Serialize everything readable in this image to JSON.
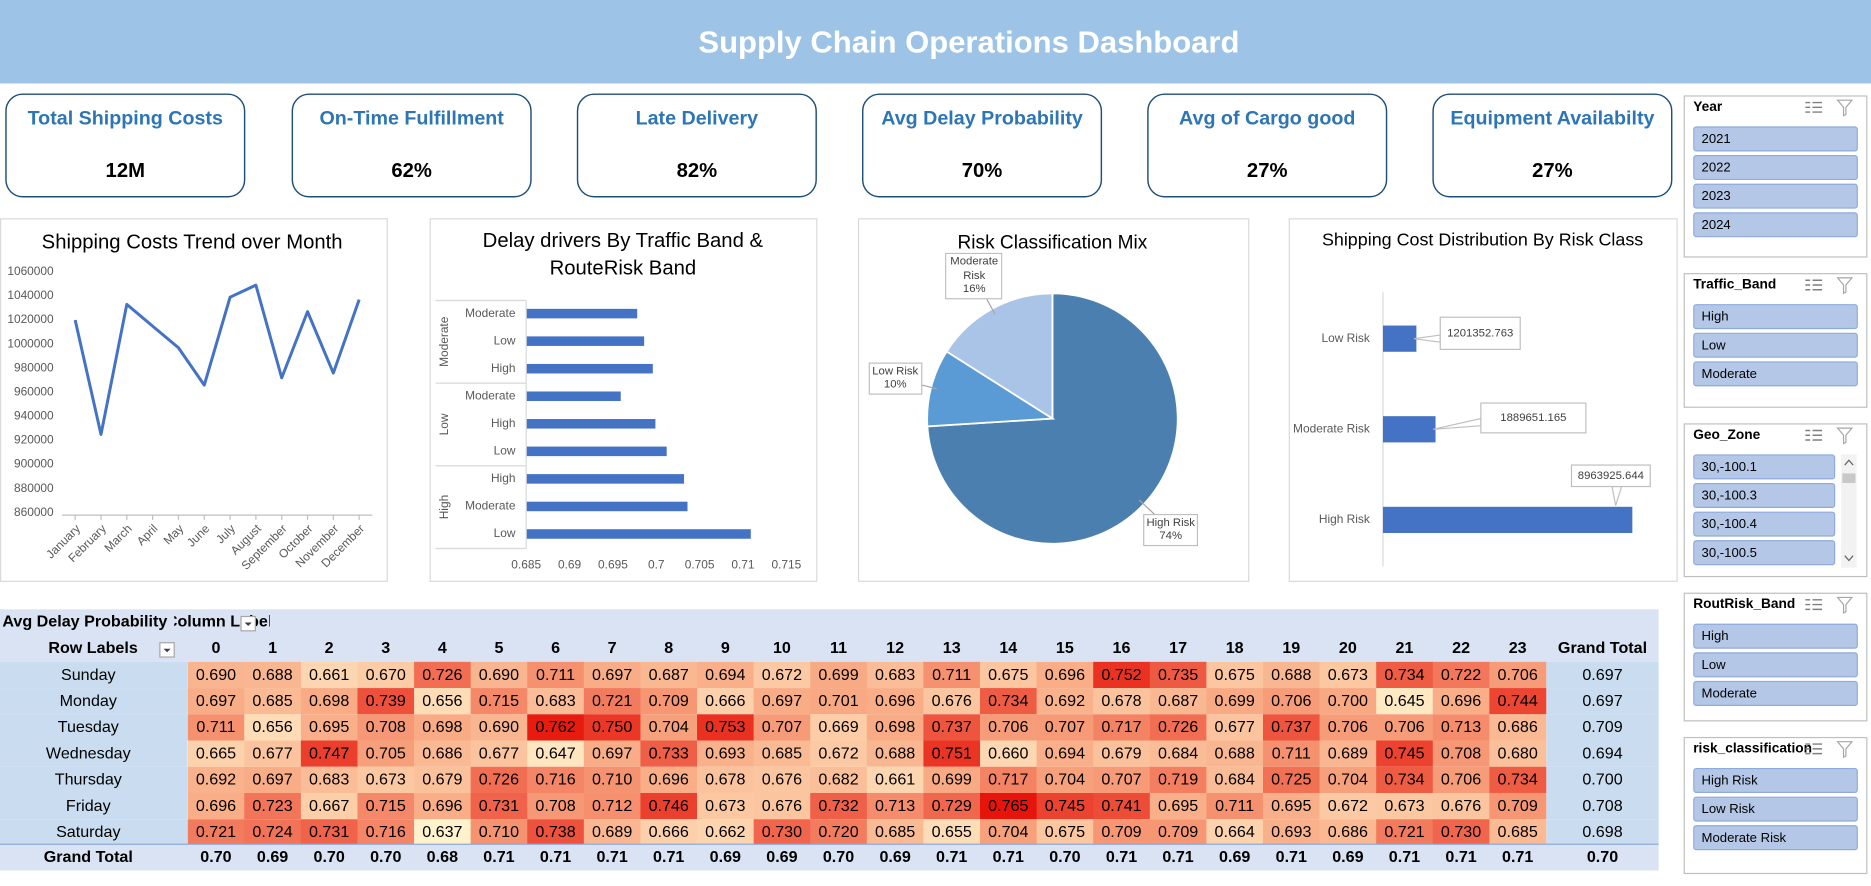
{
  "header": {
    "title": "Supply Chain Operations Dashboard"
  },
  "kpis": [
    {
      "label": "Total Shipping Costs",
      "value": "12M"
    },
    {
      "label": "On-Time Fulfillment",
      "value": "62%"
    },
    {
      "label": "Late Delivery",
      "value": "82%"
    },
    {
      "label": "Avg Delay Probability",
      "value": "70%"
    },
    {
      "label": "Avg of Cargo good",
      "value": "27%"
    },
    {
      "label": "Equipment Availabilty",
      "value": "27%"
    }
  ],
  "chart_data": [
    {
      "type": "line",
      "title": "Shipping Costs Trend over Month",
      "categories": [
        "January",
        "February",
        "March",
        "April",
        "May",
        "June",
        "July",
        "August",
        "September",
        "October",
        "November",
        "December"
      ],
      "values": [
        1020000,
        925000,
        1033000,
        1015000,
        997000,
        966000,
        1039000,
        1049000,
        972000,
        1027000,
        976000,
        1037000
      ],
      "color": "#4472c4",
      "ylim": [
        860000,
        1060000
      ],
      "yticks": [
        860000,
        880000,
        900000,
        920000,
        940000,
        960000,
        980000,
        1000000,
        1020000,
        1040000,
        1060000
      ]
    },
    {
      "type": "bar",
      "title": "Delay drivers By Traffic Band & RouteRisk Band",
      "color": "#4472c4",
      "groups": [
        {
          "name": "Moderate",
          "categories": [
            "Moderate",
            "Low",
            "High"
          ],
          "values": [
            0.6978,
            0.6986,
            0.6996
          ]
        },
        {
          "name": "Low",
          "categories": [
            "Moderate",
            "High",
            "Low"
          ],
          "values": [
            0.6959,
            0.6999,
            0.7012
          ]
        },
        {
          "name": "High",
          "categories": [
            "High",
            "Moderate",
            "Low"
          ],
          "values": [
            0.7032,
            0.7036,
            0.7109
          ]
        }
      ],
      "xlim": [
        0.685,
        0.715
      ],
      "xticks": [
        0.685,
        0.69,
        0.695,
        0.7,
        0.705,
        0.71,
        0.715
      ]
    },
    {
      "type": "pie",
      "title": "Risk Classification Mix",
      "categories": [
        "High Risk",
        "Low Risk",
        "Moderate Risk"
      ],
      "values": [
        74,
        10,
        16
      ],
      "value_labels": [
        "74%",
        "10%",
        "16%"
      ],
      "colors": [
        "#4a7fb0",
        "#5b9bd5",
        "#a9c4e6"
      ]
    },
    {
      "type": "bar",
      "title": "Shipping Cost Distribution By Risk Class",
      "color": "#4472c4",
      "categories": [
        "Low Risk",
        "Moderate Risk",
        "High Risk"
      ],
      "values": [
        1201352.763,
        1889651.165,
        8963925.644
      ]
    }
  ],
  "pivot": {
    "title": "Avg Delay Probability",
    "column_labels": "Column Labels",
    "row_labels": "Row Labels",
    "columns": [
      "0",
      "1",
      "2",
      "3",
      "4",
      "5",
      "6",
      "7",
      "8",
      "9",
      "10",
      "11",
      "12",
      "13",
      "14",
      "15",
      "16",
      "17",
      "18",
      "19",
      "20",
      "21",
      "22",
      "23"
    ],
    "grand_total_header": "Grand Total",
    "rows": [
      {
        "label": "Sunday",
        "cells": [
          "0.690",
          "0.688",
          "0.661",
          "0.670",
          "0.726",
          "0.690",
          "0.711",
          "0.697",
          "0.687",
          "0.694",
          "0.672",
          "0.699",
          "0.683",
          "0.711",
          "0.675",
          "0.696",
          "0.752",
          "0.735",
          "0.675",
          "0.688",
          "0.673",
          "0.734",
          "0.722",
          "0.706"
        ],
        "total": "0.697"
      },
      {
        "label": "Monday",
        "cells": [
          "0.697",
          "0.685",
          "0.698",
          "0.739",
          "0.656",
          "0.715",
          "0.683",
          "0.721",
          "0.709",
          "0.666",
          "0.697",
          "0.701",
          "0.696",
          "0.676",
          "0.734",
          "0.692",
          "0.678",
          "0.687",
          "0.699",
          "0.706",
          "0.700",
          "0.645",
          "0.696",
          "0.744"
        ],
        "total": "0.697"
      },
      {
        "label": "Tuesday",
        "cells": [
          "0.711",
          "0.656",
          "0.695",
          "0.708",
          "0.698",
          "0.690",
          "0.762",
          "0.750",
          "0.704",
          "0.753",
          "0.707",
          "0.669",
          "0.698",
          "0.737",
          "0.706",
          "0.707",
          "0.717",
          "0.726",
          "0.677",
          "0.737",
          "0.706",
          "0.706",
          "0.713",
          "0.686"
        ],
        "total": "0.709"
      },
      {
        "label": "Wednesday",
        "cells": [
          "0.665",
          "0.677",
          "0.747",
          "0.705",
          "0.686",
          "0.677",
          "0.647",
          "0.697",
          "0.733",
          "0.693",
          "0.685",
          "0.672",
          "0.688",
          "0.751",
          "0.660",
          "0.694",
          "0.679",
          "0.684",
          "0.688",
          "0.711",
          "0.689",
          "0.745",
          "0.708",
          "0.680"
        ],
        "total": "0.694"
      },
      {
        "label": "Thursday",
        "cells": [
          "0.692",
          "0.697",
          "0.683",
          "0.673",
          "0.679",
          "0.726",
          "0.716",
          "0.710",
          "0.696",
          "0.678",
          "0.676",
          "0.682",
          "0.661",
          "0.699",
          "0.717",
          "0.704",
          "0.707",
          "0.719",
          "0.684",
          "0.725",
          "0.704",
          "0.734",
          "0.706",
          "0.734"
        ],
        "total": "0.700"
      },
      {
        "label": "Friday",
        "cells": [
          "0.696",
          "0.723",
          "0.667",
          "0.715",
          "0.696",
          "0.731",
          "0.708",
          "0.712",
          "0.746",
          "0.673",
          "0.676",
          "0.732",
          "0.713",
          "0.729",
          "0.765",
          "0.745",
          "0.741",
          "0.695",
          "0.711",
          "0.695",
          "0.672",
          "0.673",
          "0.676",
          "0.709"
        ],
        "total": "0.708"
      },
      {
        "label": "Saturday",
        "cells": [
          "0.721",
          "0.724",
          "0.731",
          "0.716",
          "0.637",
          "0.710",
          "0.738",
          "0.689",
          "0.666",
          "0.662",
          "0.730",
          "0.720",
          "0.685",
          "0.655",
          "0.704",
          "0.675",
          "0.709",
          "0.709",
          "0.664",
          "0.693",
          "0.686",
          "0.721",
          "0.730",
          "0.685"
        ],
        "total": "0.698"
      }
    ],
    "grand_total_row": {
      "label": "Grand Total",
      "cells": [
        "0.70",
        "0.69",
        "0.70",
        "0.70",
        "0.68",
        "0.71",
        "0.71",
        "0.71",
        "0.71",
        "0.69",
        "0.69",
        "0.70",
        "0.69",
        "0.71",
        "0.71",
        "0.70",
        "0.71",
        "0.71",
        "0.69",
        "0.71",
        "0.69",
        "0.71",
        "0.71",
        "0.71"
      ],
      "total": "0.70"
    }
  },
  "slicers": [
    {
      "title": "Year",
      "items": [
        "2021",
        "2022",
        "2023",
        "2024"
      ]
    },
    {
      "title": "Traffic_Band",
      "items": [
        "High",
        "Low",
        "Moderate"
      ]
    },
    {
      "title": "Geo_Zone",
      "items": [
        "30,-100.1",
        "30,-100.3",
        "30,-100.4",
        "30,-100.5"
      ]
    },
    {
      "title": "RoutRisk_Band",
      "items": [
        "High",
        "Low",
        "Moderate"
      ]
    },
    {
      "title": "risk_classification",
      "items": [
        "High Risk",
        "Low Risk",
        "Moderate Risk"
      ]
    }
  ]
}
